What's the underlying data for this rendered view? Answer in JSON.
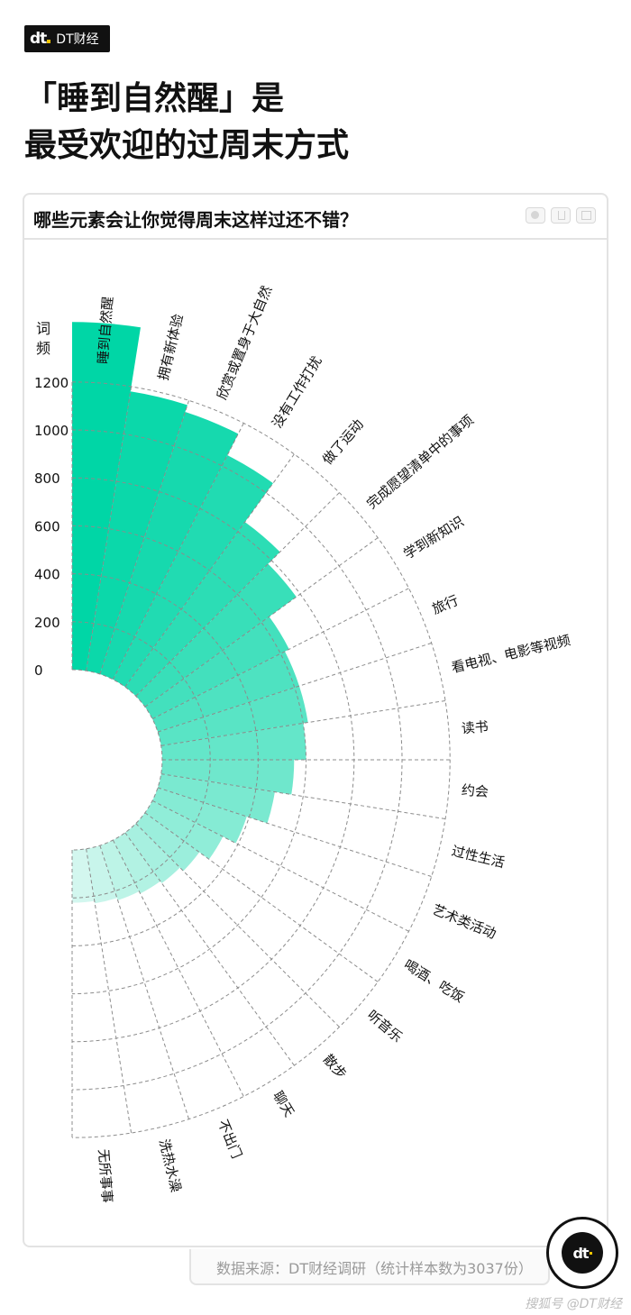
{
  "brand": {
    "logo": "dt",
    "name": "DT财经"
  },
  "headline": {
    "line1": "「睡到自然醒」是",
    "line2": "最受欢迎的过周末方式"
  },
  "card": {
    "title": "哪些元素会让你觉得周末这样过还不错？"
  },
  "source": "数据来源：DT财经调研（统计样本数为3037份）",
  "footer": "搜狐号 @DT财经",
  "badge": {
    "logo": "dt"
  },
  "colors": {
    "start": "#00d6a6",
    "end": "#d3f7ef",
    "grid": "#8c8c8c",
    "text": "#111111"
  },
  "chart_data": {
    "type": "bar",
    "subtype": "radial-polar-bar",
    "ylabel": "词频",
    "yticks": [
      0,
      200,
      400,
      600,
      800,
      1000,
      1200
    ],
    "ylim": [
      0,
      1450
    ],
    "categories": [
      "睡到自然醒",
      "拥有新体验",
      "欣赏或置身于大自然",
      "没有工作打扰",
      "做了运动",
      "完成愿望清单中的事项",
      "学到新知识",
      "旅行",
      "看电视、电影等视频",
      "读书",
      "约会",
      "过性生活",
      "艺术类活动",
      "喝酒、吃饭",
      "听音乐",
      "散步",
      "聊天",
      "不出门",
      "洗热水澡",
      "无所事事"
    ],
    "values": [
      1450,
      1180,
      1150,
      1050,
      850,
      780,
      640,
      620,
      620,
      600,
      550,
      480,
      390,
      330,
      280,
      260,
      250,
      240,
      230,
      220
    ]
  }
}
